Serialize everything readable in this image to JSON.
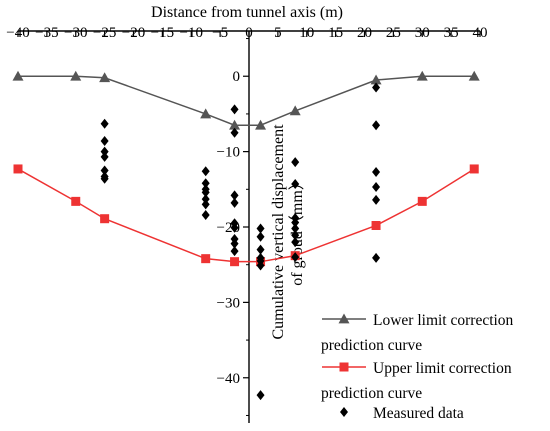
{
  "chart_data": {
    "type": "line",
    "xlabel": "Distance from tunnel axis (m)",
    "ylabel_lines": [
      "Cumulative vertical displacement",
      "of groud（mm）"
    ],
    "xlim": [
      -40,
      40
    ],
    "ylim": [
      -46,
      6
    ],
    "x_ticks": [
      -40,
      -35,
      -30,
      -25,
      -20,
      -15,
      -10,
      -5,
      0,
      5,
      10,
      15,
      20,
      25,
      30,
      35,
      40
    ],
    "x_tick_labels": [
      "−40",
      "−35",
      "−30",
      "−25",
      "−20",
      "−15",
      "−10",
      "−5",
      "0",
      "5",
      "10",
      "15",
      "20",
      "25",
      "30",
      "35",
      "40"
    ],
    "y_ticks": [
      0,
      -10,
      -20,
      -30,
      -40
    ],
    "y_tick_labels": [
      "0",
      "−10",
      "−20",
      "−30",
      "−40"
    ],
    "x_axis_position": "top",
    "y_axis_at_x": 0,
    "grid": false,
    "legend_position": "bottom-right",
    "series": [
      {
        "name_lines": [
          "Lower limit correction",
          "prediction curve"
        ],
        "marker": "triangle",
        "color": "#555555",
        "x": [
          -40,
          -30,
          -25,
          -7.5,
          -2.5,
          2,
          8,
          22,
          30,
          39
        ],
        "y": [
          0,
          0,
          -0.2,
          -5,
          -6.5,
          -6.5,
          -4.6,
          -0.5,
          0,
          0
        ]
      },
      {
        "name_lines": [
          "Upper limit correction",
          "prediction curve"
        ],
        "marker": "square",
        "color": "#ee3333",
        "x": [
          -40,
          -30,
          -25,
          -7.5,
          -2.5,
          2,
          8,
          22,
          30,
          39
        ],
        "y": [
          -12.3,
          -16.6,
          -18.9,
          -24.2,
          -24.6,
          -24.6,
          -23.8,
          -19.8,
          -16.6,
          -12.3
        ]
      },
      {
        "name_lines": [
          "Measured data"
        ],
        "marker": "diamond",
        "color": "#000000",
        "x": [
          -25,
          -25,
          -25,
          -25,
          -25,
          -25,
          -25,
          -7.5,
          -7.5,
          -7.5,
          -7.5,
          -7.5,
          -7.5,
          -7.5,
          -2.5,
          -2.5,
          -2.5,
          -2.5,
          -2.5,
          -2.5,
          -2.5,
          -2.5,
          -2.5,
          2,
          2,
          2,
          2,
          2,
          2,
          2,
          8,
          8,
          8,
          8,
          8,
          8,
          8,
          8,
          22,
          22,
          22,
          22,
          22,
          22
        ],
        "y": [
          -6.3,
          -8.6,
          -10.0,
          -10.7,
          -12.5,
          -13.3,
          -13.6,
          -12.6,
          -14.2,
          -15.0,
          -15.4,
          -16.3,
          -17.0,
          -18.4,
          -4.4,
          -7.5,
          -15.8,
          -16.8,
          -19.5,
          -20.1,
          -21.6,
          -22.2,
          -23.2,
          -20.2,
          -21.3,
          -23.0,
          -24.1,
          -24.5,
          -25.1,
          -42.3,
          -11.4,
          -14.3,
          -18.8,
          -19.4,
          -20.2,
          -21.1,
          -22.0,
          -24.0,
          -1.5,
          -6.5,
          -12.7,
          -14.7,
          -16.4,
          -24.1
        ]
      }
    ]
  }
}
